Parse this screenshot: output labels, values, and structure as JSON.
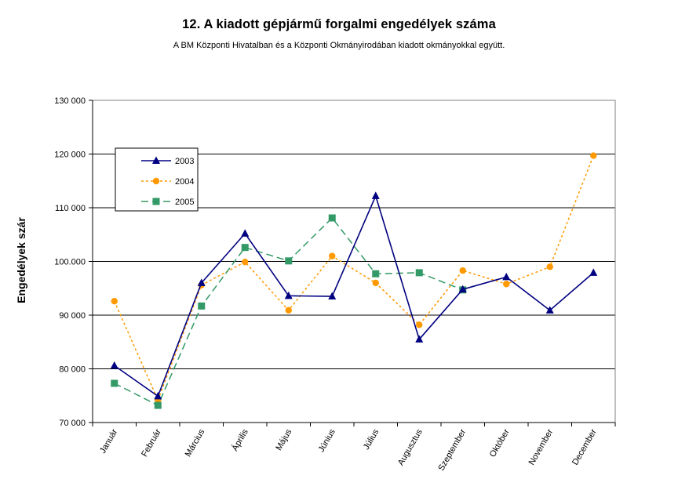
{
  "chart_data": {
    "type": "line",
    "title": "12. A  kiadott gépjármű forgalmi engedélyek száma",
    "subtitle": "A BM Központi Hivatalban és a Központi Okmányirodában kiadott okmányokkal együtt.",
    "ylabel": "Engedélyek szár",
    "xlabel": "",
    "ylim": [
      70000,
      130000
    ],
    "ytick_values": [
      70000,
      80000,
      90000,
      100000,
      110000,
      120000,
      130000
    ],
    "ytick_labels": [
      "70 000",
      "80 000",
      "90 000",
      "100.000",
      "110 000",
      "120 000",
      "130 000"
    ],
    "categories": [
      "Január",
      "Február",
      "Március",
      "Április",
      "Május",
      "Június",
      "Július",
      "Augusztus",
      "Szeptember",
      "Október",
      "November",
      "December"
    ],
    "grid": true,
    "legend_position": "top-left",
    "series": [
      {
        "name": "2003",
        "color": "#000080",
        "marker": "triangle",
        "dash": "solid",
        "values": [
          80600,
          74900,
          96000,
          105200,
          93600,
          93500,
          112200,
          85500,
          94800,
          97100,
          90900,
          97900
        ]
      },
      {
        "name": "2004",
        "color": "#FF9900",
        "marker": "circle",
        "dash": "dotted",
        "values": [
          92600,
          74200,
          95600,
          99900,
          90900,
          101000,
          96000,
          88200,
          98300,
          95800,
          99000,
          119700
        ]
      },
      {
        "name": "2005",
        "color": "#339966",
        "marker": "square",
        "dash": "dashed",
        "values": [
          77300,
          73200,
          91700,
          102600,
          100100,
          108100,
          97700,
          97900,
          94700,
          null,
          null,
          null
        ]
      }
    ]
  }
}
